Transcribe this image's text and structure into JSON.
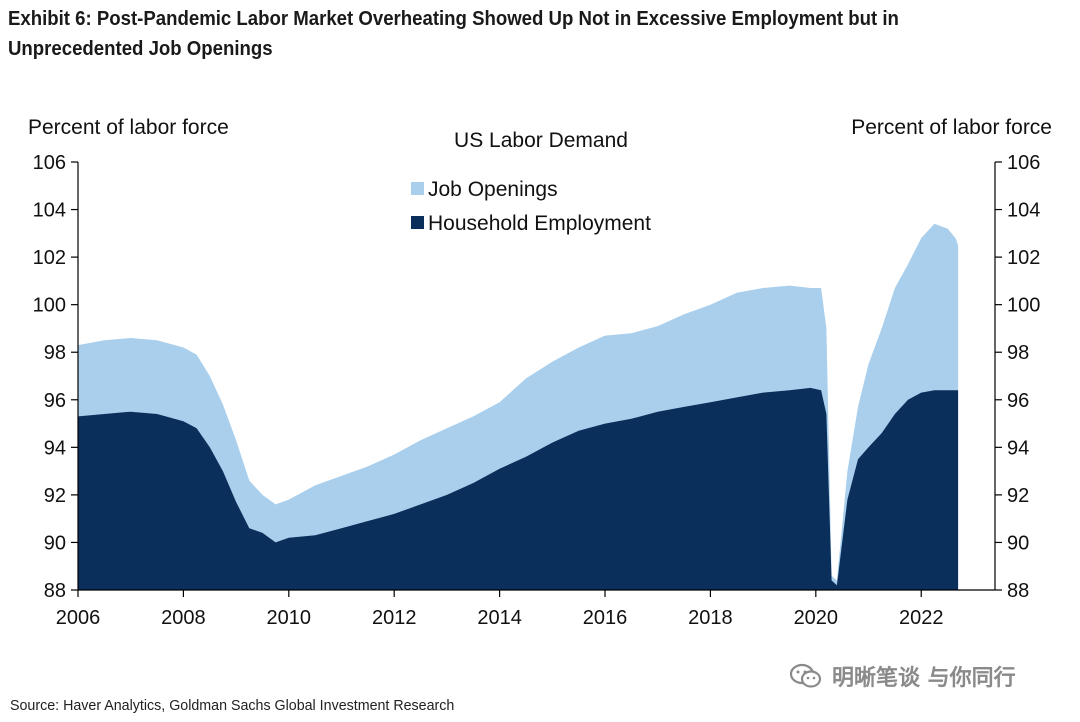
{
  "title": "Exhibit 6: Post-Pandemic Labor Market Overheating Showed Up Not in Excessive Employment but in Unprecedented Job Openings",
  "source": "Source: Haver Analytics, Goldman Sachs Global Investment Research",
  "watermark": {
    "text": "明晰笔谈 与你同行",
    "icon": "wechat-icon"
  },
  "colors": {
    "job_openings": "#a9cfed",
    "employment": "#0b2f5b",
    "axis": "#000000"
  },
  "chart_data": {
    "type": "area",
    "title": "US Labor Demand",
    "ylabel_left": "Percent of labor force",
    "ylabel_right": "Percent of labor force",
    "ylim": [
      88,
      106
    ],
    "yticks": [
      "88",
      "90",
      "92",
      "94",
      "96",
      "98",
      "100",
      "102",
      "104",
      "106"
    ],
    "xlim": [
      2006,
      2023.4
    ],
    "xticks": [
      "2006",
      "2008",
      "2010",
      "2012",
      "2014",
      "2016",
      "2018",
      "2020",
      "2022"
    ],
    "legend": {
      "position": "top-center"
    },
    "series": [
      {
        "name": "Job Openings",
        "color": "#a9cfed",
        "x": [
          2006.0,
          2006.5,
          2007.0,
          2007.5,
          2008.0,
          2008.25,
          2008.5,
          2008.75,
          2009.0,
          2009.25,
          2009.5,
          2009.75,
          2010.0,
          2010.5,
          2011.0,
          2011.5,
          2012.0,
          2012.5,
          2013.0,
          2013.5,
          2014.0,
          2014.5,
          2015.0,
          2015.5,
          2016.0,
          2016.5,
          2017.0,
          2017.5,
          2018.0,
          2018.5,
          2019.0,
          2019.5,
          2019.9,
          2020.1,
          2020.2,
          2020.3,
          2020.4,
          2020.6,
          2020.8,
          2021.0,
          2021.25,
          2021.5,
          2021.75,
          2022.0,
          2022.25,
          2022.5,
          2022.65,
          2022.7
        ],
        "values": [
          98.3,
          98.5,
          98.6,
          98.5,
          98.2,
          97.9,
          97.0,
          95.8,
          94.3,
          92.6,
          92.0,
          91.6,
          91.8,
          92.4,
          92.8,
          93.2,
          93.7,
          94.3,
          94.8,
          95.3,
          95.9,
          96.9,
          97.6,
          98.2,
          98.7,
          98.8,
          99.1,
          99.6,
          100.0,
          100.5,
          100.7,
          100.8,
          100.7,
          100.7,
          99.0,
          88.6,
          88.4,
          93.0,
          95.7,
          97.5,
          99.0,
          100.7,
          101.7,
          102.8,
          103.4,
          103.2,
          102.8,
          102.5
        ]
      },
      {
        "name": "Household Employment",
        "color": "#0b2f5b",
        "x": [
          2006.0,
          2006.5,
          2007.0,
          2007.5,
          2008.0,
          2008.25,
          2008.5,
          2008.75,
          2009.0,
          2009.25,
          2009.5,
          2009.75,
          2010.0,
          2010.5,
          2011.0,
          2011.5,
          2012.0,
          2012.5,
          2013.0,
          2013.5,
          2014.0,
          2014.5,
          2015.0,
          2015.5,
          2016.0,
          2016.5,
          2017.0,
          2017.5,
          2018.0,
          2018.5,
          2019.0,
          2019.5,
          2019.9,
          2020.1,
          2020.2,
          2020.3,
          2020.4,
          2020.6,
          2020.8,
          2021.0,
          2021.25,
          2021.5,
          2021.75,
          2022.0,
          2022.25,
          2022.5,
          2022.65,
          2022.7
        ],
        "values": [
          95.3,
          95.4,
          95.5,
          95.4,
          95.1,
          94.8,
          94.0,
          93.0,
          91.7,
          90.6,
          90.4,
          90.0,
          90.2,
          90.3,
          90.6,
          90.9,
          91.2,
          91.6,
          92.0,
          92.5,
          93.1,
          93.6,
          94.2,
          94.7,
          95.0,
          95.2,
          95.5,
          95.7,
          95.9,
          96.1,
          96.3,
          96.4,
          96.5,
          96.4,
          95.4,
          88.4,
          88.2,
          91.8,
          93.5,
          94.0,
          94.6,
          95.4,
          96.0,
          96.3,
          96.4,
          96.4,
          96.4,
          96.4
        ]
      }
    ]
  }
}
